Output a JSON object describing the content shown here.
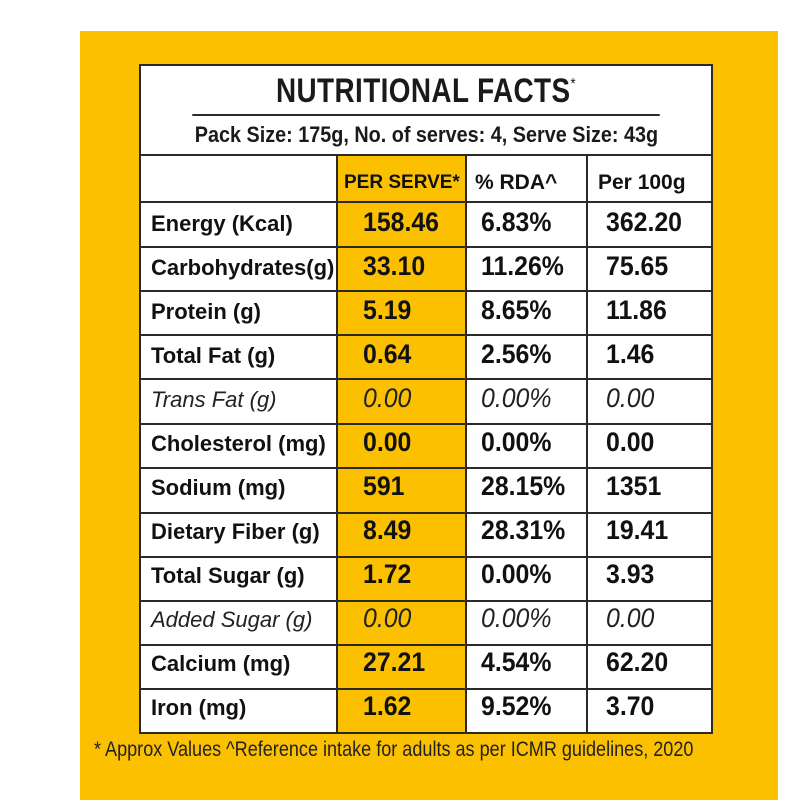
{
  "title": "NUTRITIONAL FACTS",
  "title_mark": "*",
  "pack_info": "Pack Size: 175g, No. of serves: 4, Serve Size: 43g",
  "headers": {
    "per_serve": "PER SERVE*",
    "rda": "% RDA^",
    "per100": "Per 100g"
  },
  "rows": [
    {
      "label": "Energy (Kcal)",
      "per_serve": "158.46",
      "rda": "6.83%",
      "per100": "362.20",
      "italic": false
    },
    {
      "label": "Carbohydrates(g)",
      "per_serve": "33.10",
      "rda": "11.26%",
      "per100": "75.65",
      "italic": false
    },
    {
      "label": "Protein (g)",
      "per_serve": "5.19",
      "rda": "8.65%",
      "per100": "11.86",
      "italic": false
    },
    {
      "label": "Total Fat (g)",
      "per_serve": "0.64",
      "rda": "2.56%",
      "per100": "1.46",
      "italic": false
    },
    {
      "label": "Trans Fat (g)",
      "per_serve": "0.00",
      "rda": "0.00%",
      "per100": "0.00",
      "italic": true
    },
    {
      "label": "Cholesterol (mg)",
      "per_serve": "0.00",
      "rda": "0.00%",
      "per100": "0.00",
      "italic": false
    },
    {
      "label": "Sodium (mg)",
      "per_serve": "591",
      "rda": "28.15%",
      "per100": "1351",
      "italic": false
    },
    {
      "label": "Dietary Fiber (g)",
      "per_serve": "8.49",
      "rda": "28.31%",
      "per100": "19.41",
      "italic": false
    },
    {
      "label": "Total Sugar (g)",
      "per_serve": "1.72",
      "rda": "0.00%",
      "per100": "3.93",
      "italic": false
    },
    {
      "label": "Added Sugar (g)",
      "per_serve": "0.00",
      "rda": "0.00%",
      "per100": "0.00",
      "italic": true
    },
    {
      "label": "Calcium (mg)",
      "per_serve": "27.21",
      "rda": "4.54%",
      "per100": "62.20",
      "italic": false
    },
    {
      "label": "Iron (mg)",
      "per_serve": "1.62",
      "rda": "9.52%",
      "per100": "3.70",
      "italic": false
    }
  ],
  "footnote": "* Approx Values ^Reference intake for adults as per ICMR guidelines, 2020",
  "colors": {
    "accent": "#fbc100",
    "border": "#2a2a2a",
    "text": "#111111"
  }
}
